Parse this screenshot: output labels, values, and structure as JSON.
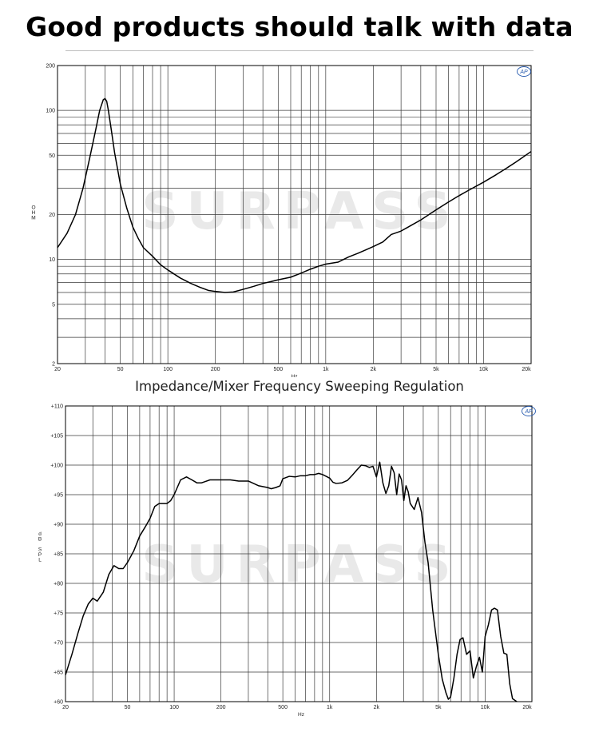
{
  "headline": "Good products should talk with data",
  "caption": "Impedance/Mixer Frequency Sweeping Regulation",
  "watermark": "SURPASS",
  "badge": "AP",
  "chart_data": [
    {
      "type": "line",
      "title": "",
      "xlabel": "Hz",
      "ylabel": "OHM",
      "xscale": "log",
      "yscale": "log",
      "xlim": [
        20,
        20000
      ],
      "ylim": [
        2,
        200
      ],
      "grid": true,
      "x_ticks": [
        {
          "v": 20,
          "label": "20"
        },
        {
          "v": 50,
          "label": "50"
        },
        {
          "v": 100,
          "label": "100"
        },
        {
          "v": 200,
          "label": "200"
        },
        {
          "v": 500,
          "label": "500"
        },
        {
          "v": 1000,
          "label": "1k"
        },
        {
          "v": 2000,
          "label": "2k"
        },
        {
          "v": 5000,
          "label": "5k"
        },
        {
          "v": 10000,
          "label": "10k"
        },
        {
          "v": 20000,
          "label": "20k"
        }
      ],
      "y_ticks": [
        {
          "v": 2,
          "label": "2"
        },
        {
          "v": 5,
          "label": "5"
        },
        {
          "v": 10,
          "label": "10"
        },
        {
          "v": 20,
          "label": "20"
        },
        {
          "v": 50,
          "label": "50"
        },
        {
          "v": 100,
          "label": "100"
        },
        {
          "v": 200,
          "label": "200"
        }
      ],
      "series": [
        {
          "x": [
            20,
            23,
            26,
            29,
            32,
            35,
            37,
            39,
            40,
            41,
            42,
            44,
            46,
            50,
            55,
            60,
            65,
            70,
            80,
            90,
            100,
            120,
            140,
            160,
            180,
            200,
            230,
            260,
            300,
            350,
            400,
            450,
            500,
            600,
            700,
            800,
            900,
            1000,
            1200,
            1400,
            1600,
            1800,
            2000,
            2300,
            2600,
            3000,
            3500,
            4000,
            5000,
            6000,
            7000,
            8000,
            10000,
            12000,
            14000,
            16000,
            18000,
            20000
          ],
          "y": [
            12,
            15,
            20,
            30,
            48,
            75,
            100,
            118,
            120,
            115,
            100,
            72,
            52,
            32,
            22,
            16.5,
            13.8,
            12,
            10.5,
            9.2,
            8.5,
            7.5,
            6.9,
            6.5,
            6.2,
            6.1,
            6.0,
            6.05,
            6.3,
            6.6,
            6.9,
            7.1,
            7.3,
            7.6,
            8.1,
            8.6,
            9.0,
            9.3,
            9.6,
            10.4,
            11.0,
            11.6,
            12.2,
            13.1,
            14.7,
            15.5,
            17.0,
            18.4,
            21.5,
            24.3,
            26.8,
            29.0,
            33.0,
            37.0,
            41.0,
            45.0,
            49.0,
            53.0
          ]
        }
      ]
    },
    {
      "type": "line",
      "title": "",
      "xlabel": "Hz",
      "ylabel": "dB SPL",
      "xscale": "log",
      "xlim": [
        20,
        20000
      ],
      "ylim": [
        60,
        110
      ],
      "grid": true,
      "x_ticks": [
        {
          "v": 20,
          "label": "20"
        },
        {
          "v": 50,
          "label": "50"
        },
        {
          "v": 100,
          "label": "100"
        },
        {
          "v": 200,
          "label": "200"
        },
        {
          "v": 500,
          "label": "500"
        },
        {
          "v": 1000,
          "label": "1k"
        },
        {
          "v": 2000,
          "label": "2k"
        },
        {
          "v": 5000,
          "label": "5k"
        },
        {
          "v": 10000,
          "label": "10k"
        },
        {
          "v": 20000,
          "label": "20k"
        }
      ],
      "y_ticks": [
        {
          "v": 60,
          "label": "+60"
        },
        {
          "v": 65,
          "label": "+65"
        },
        {
          "v": 70,
          "label": "+70"
        },
        {
          "v": 75,
          "label": "+75"
        },
        {
          "v": 80,
          "label": "+80"
        },
        {
          "v": 85,
          "label": "+85"
        },
        {
          "v": 90,
          "label": "+90"
        },
        {
          "v": 95,
          "label": "+95"
        },
        {
          "v": 100,
          "label": "+100"
        },
        {
          "v": 105,
          "label": "+105"
        },
        {
          "v": 110,
          "label": "+110"
        }
      ],
      "series": [
        {
          "x": [
            20,
            22,
            24,
            26,
            28,
            30,
            32,
            35,
            38,
            41,
            44,
            47,
            50,
            55,
            60,
            65,
            70,
            75,
            80,
            85,
            90,
            95,
            100,
            110,
            120,
            130,
            140,
            150,
            170,
            190,
            200,
            230,
            260,
            300,
            350,
            400,
            420,
            450,
            480,
            500,
            550,
            600,
            650,
            700,
            750,
            800,
            850,
            900,
            950,
            1000,
            1050,
            1100,
            1200,
            1300,
            1400,
            1500,
            1600,
            1700,
            1800,
            1900,
            2000,
            2100,
            2200,
            2300,
            2400,
            2500,
            2600,
            2700,
            2800,
            2900,
            3000,
            3100,
            3200,
            3300,
            3500,
            3700,
            3900,
            4100,
            4300,
            4600,
            5000,
            5300,
            5600,
            5800,
            6000,
            6300,
            6600,
            6900,
            7200,
            7600,
            8000,
            8400,
            8800,
            9200,
            9600,
            10000,
            10500,
            11000,
            11500,
            12000,
            12600,
            13200,
            13800,
            14400,
            15000,
            16000
          ],
          "y": [
            64.5,
            68,
            71.5,
            74.5,
            76.5,
            77.5,
            77,
            78.5,
            81.5,
            83,
            82.5,
            82.5,
            83.5,
            85.5,
            88,
            89.5,
            91,
            93,
            93.5,
            93.5,
            93.5,
            94,
            95,
            97.5,
            98,
            97.5,
            97,
            97,
            97.5,
            97.5,
            97.5,
            97.5,
            97.3,
            97.3,
            96.5,
            96.2,
            96,
            96.2,
            96.5,
            97.7,
            98.1,
            98,
            98.2,
            98.2,
            98.4,
            98.4,
            98.6,
            98.4,
            98.1,
            97.8,
            97.1,
            96.9,
            97,
            97.4,
            98.3,
            99.2,
            100,
            99.9,
            99.6,
            99.8,
            98,
            100.5,
            97,
            95.2,
            96.5,
            99.8,
            98.7,
            95,
            98.5,
            97.5,
            94,
            96.5,
            95.5,
            93.5,
            92.5,
            94.5,
            92,
            87,
            83.5,
            75.5,
            68,
            63.8,
            61.5,
            60.4,
            60.8,
            64,
            68,
            70.5,
            70.8,
            68,
            68.6,
            64,
            66,
            67.5,
            65,
            71,
            73,
            75.5,
            75.8,
            75.5,
            71,
            68.2,
            68,
            63,
            60.5,
            60
          ]
        }
      ]
    }
  ]
}
